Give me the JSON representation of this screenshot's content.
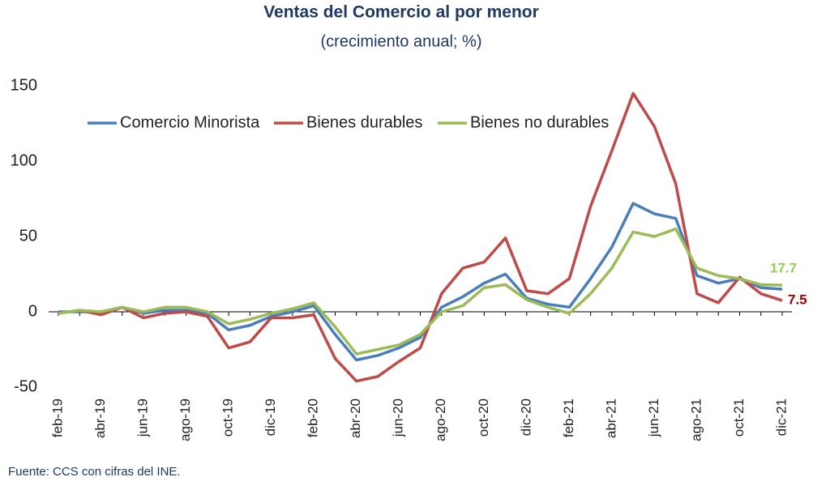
{
  "chart_data": {
    "type": "line",
    "title": "Ventas del Comercio al por menor",
    "subtitle": "(crecimiento anual; %)",
    "source": "Fuente: CCS con cifras del INE.",
    "categories": [
      "feb-19",
      null,
      "abr-19",
      null,
      "jun-19",
      null,
      "ago-19",
      null,
      "oct-19",
      null,
      "dic-19",
      null,
      "feb-20",
      null,
      "abr-20",
      null,
      "jun-20",
      null,
      "ago-20",
      null,
      "oct-20",
      null,
      "dic-20",
      null,
      "feb-21",
      null,
      "abr-21",
      null,
      "jun-21",
      null,
      "ago-21",
      null,
      "oct-21",
      null,
      "dic-21"
    ],
    "series": [
      {
        "name": "Comercio Minorista",
        "color": "#4a7ebb",
        "values": [
          0,
          0,
          0,
          3,
          -1,
          1,
          1,
          -1,
          -12,
          -9,
          -3,
          0,
          4,
          -15,
          -32,
          -29,
          -24,
          -17,
          3,
          10,
          19,
          25,
          9,
          5,
          3,
          22,
          43,
          72,
          65,
          62,
          24,
          19,
          22,
          16,
          15
        ]
      },
      {
        "name": "Bienes durables",
        "color": "#be4b48",
        "values": [
          -1,
          1,
          -2,
          3,
          -4,
          -1,
          0,
          -3,
          -24,
          -20,
          -4,
          -4,
          -2,
          -31,
          -46,
          -43,
          -33,
          -24,
          12,
          29,
          33,
          49,
          14,
          12,
          22,
          70,
          107,
          145,
          123,
          85,
          12,
          6,
          23,
          12,
          7.5
        ]
      },
      {
        "name": "Bienes no  durables",
        "color": "#9bbb59",
        "values": [
          -1,
          1,
          0,
          3,
          0,
          3,
          3,
          0,
          -8,
          -5,
          -1,
          2,
          6,
          -10,
          -28,
          -25,
          -22,
          -15,
          0,
          4,
          16,
          18,
          8,
          3,
          -1,
          12,
          29,
          53,
          50,
          55,
          29,
          24,
          22,
          18,
          17.7
        ]
      }
    ],
    "ylim": [
      -50,
      150
    ],
    "yticks": [
      -50,
      0,
      50,
      100,
      150
    ]
  }
}
